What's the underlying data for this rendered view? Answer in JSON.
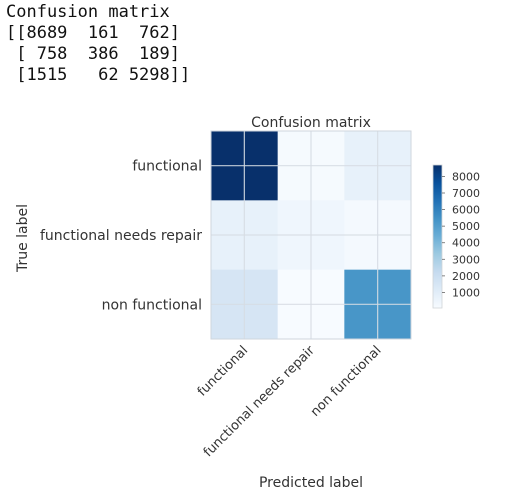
{
  "console": {
    "header": "Confusion matrix",
    "lines": [
      "[[8689  161  762]",
      " [ 758  386  189]",
      " [1515   62 5298]]"
    ]
  },
  "chart_data": {
    "type": "heatmap",
    "title": "Confusion matrix",
    "xlabel": "Predicted label",
    "ylabel": "True label",
    "x_categories": [
      "functional",
      "functional needs repair",
      "non functional"
    ],
    "y_categories": [
      "functional",
      "functional needs repair",
      "non functional"
    ],
    "values": [
      [
        8689,
        161,
        762
      ],
      [
        758,
        386,
        189
      ],
      [
        1515,
        62,
        5298
      ]
    ],
    "colormap": "Blues",
    "colorbar_ticks": [
      1000,
      2000,
      3000,
      4000,
      5000,
      6000,
      7000,
      8000
    ],
    "vmin": 62,
    "vmax": 8689,
    "grid": true
  }
}
